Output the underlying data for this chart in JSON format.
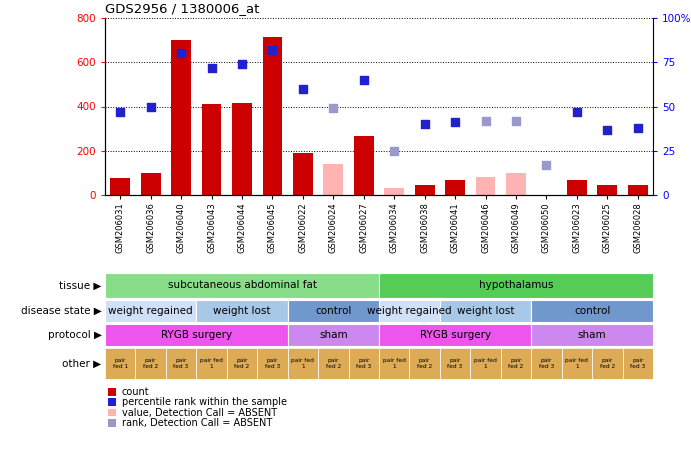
{
  "title": "GDS2956 / 1380006_at",
  "samples": [
    "GSM206031",
    "GSM206036",
    "GSM206040",
    "GSM206043",
    "GSM206044",
    "GSM206045",
    "GSM206022",
    "GSM206024",
    "GSM206027",
    "GSM206034",
    "GSM206038",
    "GSM206041",
    "GSM206046",
    "GSM206049",
    "GSM206050",
    "GSM206023",
    "GSM206025",
    "GSM206028"
  ],
  "count_present": [
    75,
    100,
    700,
    410,
    415,
    715,
    190,
    null,
    265,
    null,
    45,
    70,
    null,
    null,
    null,
    70,
    45,
    45
  ],
  "count_absent": [
    null,
    null,
    null,
    null,
    null,
    null,
    null,
    140,
    null,
    30,
    null,
    null,
    80,
    100,
    null,
    null,
    null,
    null
  ],
  "rank_present": [
    47,
    50,
    80,
    72,
    74,
    82,
    60,
    null,
    65,
    null,
    40,
    41,
    null,
    null,
    null,
    47,
    37,
    38
  ],
  "rank_absent": [
    null,
    null,
    null,
    null,
    null,
    null,
    null,
    49,
    null,
    25,
    null,
    null,
    42,
    42,
    17,
    null,
    null,
    null
  ],
  "ylim_left": [
    0,
    800
  ],
  "ylim_right": [
    0,
    100
  ],
  "yticks_left": [
    0,
    200,
    400,
    600,
    800
  ],
  "yticks_right": [
    0,
    25,
    50,
    75,
    100
  ],
  "bar_color_present": "#cc0000",
  "bar_color_absent": "#ffb3b3",
  "square_color_present": "#2222cc",
  "square_color_absent": "#9999cc",
  "tissue_groups": [
    {
      "label": "subcutaneous abdominal fat",
      "start": 0,
      "end": 9,
      "color": "#88dd88"
    },
    {
      "label": "hypothalamus",
      "start": 9,
      "end": 18,
      "color": "#55cc55"
    }
  ],
  "disease_groups": [
    {
      "label": "weight regained",
      "start": 0,
      "end": 3,
      "color": "#d0e0f8"
    },
    {
      "label": "weight lost",
      "start": 3,
      "end": 6,
      "color": "#a8c8e8"
    },
    {
      "label": "control",
      "start": 6,
      "end": 9,
      "color": "#7098cc"
    },
    {
      "label": "weight regained",
      "start": 9,
      "end": 11,
      "color": "#d0e0f8"
    },
    {
      "label": "weight lost",
      "start": 11,
      "end": 14,
      "color": "#a8c8e8"
    },
    {
      "label": "control",
      "start": 14,
      "end": 18,
      "color": "#7098cc"
    }
  ],
  "protocol_groups": [
    {
      "label": "RYGB surgery",
      "start": 0,
      "end": 6,
      "color": "#ee55ee"
    },
    {
      "label": "sham",
      "start": 6,
      "end": 9,
      "color": "#cc88ee"
    },
    {
      "label": "RYGB surgery",
      "start": 9,
      "end": 14,
      "color": "#ee55ee"
    },
    {
      "label": "sham",
      "start": 14,
      "end": 18,
      "color": "#cc88ee"
    }
  ],
  "other_labels": [
    "pair\nfed 1",
    "pair\nfed 2",
    "pair\nfed 3",
    "pair fed\n1",
    "pair\nfed 2",
    "pair\nfed 3",
    "pair fed\n1",
    "pair\nfed 2",
    "pair\nfed 3",
    "pair fed\n1",
    "pair\nfed 2",
    "pair\nfed 3",
    "pair fed\n1",
    "pair\nfed 2",
    "pair\nfed 3",
    "pair fed\n1",
    "pair\nfed 2",
    "pair\nfed 3"
  ],
  "other_color": "#ddaa55",
  "annot_row_labels": [
    "tissue",
    "disease state",
    "protocol",
    "other"
  ],
  "legend_items": [
    {
      "label": "count",
      "color": "#cc0000"
    },
    {
      "label": "percentile rank within the sample",
      "color": "#2222cc"
    },
    {
      "label": "value, Detection Call = ABSENT",
      "color": "#ffb3b3"
    },
    {
      "label": "rank, Detection Call = ABSENT",
      "color": "#9999cc"
    }
  ]
}
